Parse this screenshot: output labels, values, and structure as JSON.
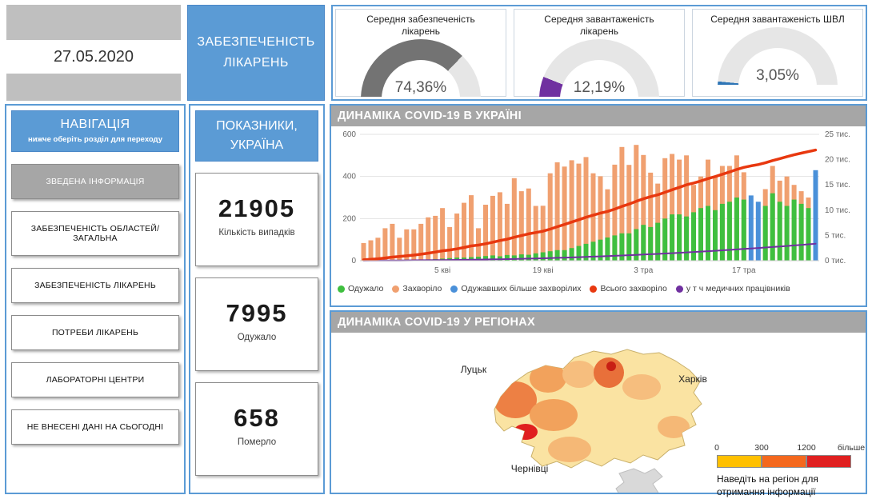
{
  "colors": {
    "accent_blue": "#5B9BD5",
    "header_gray": "#A6A6A6",
    "panel_border": "#8C8C8C"
  },
  "date_card": {
    "date": "27.05.2020"
  },
  "hospital_header": {
    "title": "ЗАБЕЗПЕЧЕНІСТЬ ЛІКАРЕНЬ"
  },
  "gauges": [
    {
      "title": "Середня забезпеченість лікарень",
      "value": "74,36%",
      "percent": 74.36,
      "color": "#737373"
    },
    {
      "title": "Середня завантаженість лікарень",
      "value": "12,19%",
      "percent": 12.19,
      "color": "#7030A0"
    },
    {
      "title": "Середня завантаженість ШВЛ",
      "value": "3,05%",
      "percent": 3.05,
      "color": "#2E75B6"
    }
  ],
  "navigation": {
    "title": "НАВІГАЦІЯ",
    "subtitle": "нижче оберіть розділ для переходу",
    "items": [
      {
        "label": "ЗВЕДЕНА ІНФОРМАЦІЯ",
        "active": true
      },
      {
        "label": "ЗАБЕЗПЕЧЕНІСТЬ ОБЛАСТЕЙ/ ЗАГАЛЬНА",
        "active": false
      },
      {
        "label": "ЗАБЕЗПЕЧЕНІСТЬ ЛІКАРЕНЬ",
        "active": false
      },
      {
        "label": "ПОТРЕБИ ЛІКАРЕНЬ",
        "active": false
      },
      {
        "label": "ЛАБОРАТОРНІ ЦЕНТРИ",
        "active": false
      },
      {
        "label": "НЕ ВНЕСЕНІ ДАНІ НА СЬОГОДНІ",
        "active": false
      }
    ]
  },
  "indicators": {
    "title": "ПОКАЗНИКИ, УКРАЇНА",
    "cards": [
      {
        "value": "21905",
        "label": "Кількість випадків"
      },
      {
        "value": "7995",
        "label": "Одужало"
      },
      {
        "value": "658",
        "label": "Померло"
      }
    ]
  },
  "chart_data": {
    "type": "combo-bar-line",
    "title": "ДИНАМІКА COVID-19 В УКРАЇНІ",
    "left_axis": {
      "ticks": [
        0,
        200,
        400,
        600
      ],
      "max": 600
    },
    "right_axis": {
      "tick_labels": [
        "0 тис.",
        "5 тис.",
        "10 тис.",
        "15 тис.",
        "20 тис.",
        "25 тис."
      ],
      "tick_values": [
        0,
        5000,
        10000,
        15000,
        20000,
        25000
      ],
      "max": 25000
    },
    "x_tick_labels": [
      {
        "index": 11,
        "label": "5 кві"
      },
      {
        "index": 25,
        "label": "19 кві"
      },
      {
        "index": 39,
        "label": "3 тра"
      },
      {
        "index": 53,
        "label": "17 тра"
      }
    ],
    "series": [
      {
        "name": "Одужало",
        "type": "bar",
        "axis": "left",
        "color": "#3FBF3F",
        "values": [
          0,
          1,
          1,
          3,
          2,
          4,
          5,
          4,
          5,
          6,
          8,
          10,
          12,
          15,
          15,
          17,
          19,
          22,
          25,
          21,
          27,
          25,
          30,
          28,
          35,
          40,
          45,
          50,
          50,
          60,
          70,
          80,
          90,
          100,
          110,
          120,
          130,
          130,
          150,
          170,
          160,
          180,
          200,
          220,
          220,
          210,
          230,
          250,
          260,
          240,
          270,
          280,
          300,
          290,
          310,
          280,
          260,
          320,
          280,
          260,
          290,
          270,
          250,
          430
        ]
      },
      {
        "name": "Захворіло",
        "type": "bar",
        "axis": "left",
        "color": "#F0A070",
        "values": [
          84,
          97,
          109,
          154,
          175,
          109,
          149,
          149,
          175,
          206,
          213,
          250,
          160,
          224,
          275,
          311,
          154,
          266,
          308,
          325,
          270,
          392,
          330,
          343,
          260,
          261,
          415,
          467,
          447,
          477,
          461,
          492,
          415,
          401,
          339,
          456,
          540,
          455,
          550,
          502,
          418,
          366,
          487,
          507,
          480,
          500,
          360,
          400,
          480,
          400,
          450,
          450,
          500,
          420,
          300,
          250,
          340,
          450,
          380,
          400,
          360,
          330,
          300,
          324
        ]
      },
      {
        "name": "Одужавших більше захворілих",
        "type": "bar-rule",
        "axis": "left",
        "color": "#4A90D9",
        "rule": "bar shown blue on days when recovered exceeds new cases"
      },
      {
        "name": "Всього захворіло",
        "type": "line",
        "axis": "right",
        "color": "#E8380F",
        "values": [
          171,
          268,
          377,
          531,
          706,
          815,
          964,
          1113,
          1288,
          1494,
          1707,
          1957,
          2117,
          2341,
          2616,
          2927,
          3081,
          3347,
          3655,
          3980,
          4250,
          4642,
          4972,
          5315,
          5575,
          5836,
          6251,
          6718,
          7165,
          7642,
          8103,
          8595,
          9010,
          9411,
          9750,
          10206,
          10746,
          11201,
          11751,
          12253,
          12671,
          13037,
          13524,
          14031,
          14511,
          15011,
          15371,
          15771,
          16251,
          16651,
          17101,
          17551,
          18051,
          18471,
          18771,
          19021,
          19361,
          19811,
          20191,
          20591,
          20951,
          21281,
          21581,
          21905
        ]
      },
      {
        "name": "у т ч медичних працівників",
        "type": "line",
        "axis": "right",
        "color": "#7030A0",
        "values": [
          20,
          25,
          31,
          38,
          46,
          55,
          65,
          76,
          88,
          101,
          115,
          130,
          146,
          163,
          181,
          200,
          220,
          241,
          263,
          286,
          310,
          340,
          372,
          406,
          442,
          480,
          520,
          562,
          606,
          652,
          700,
          750,
          802,
          856,
          912,
          970,
          1030,
          1090,
          1152,
          1216,
          1282,
          1350,
          1420,
          1492,
          1566,
          1642,
          1720,
          1800,
          1882,
          1966,
          2052,
          2140,
          2230,
          2322,
          2416,
          2512,
          2610,
          2710,
          2812,
          2916,
          3022,
          3130,
          3240,
          3352
        ]
      }
    ],
    "legend": [
      {
        "label": "Одужало",
        "color": "#3FBF3F"
      },
      {
        "label": "Захворіло",
        "color": "#F0A070"
      },
      {
        "label": "Одужавших більше захворілих",
        "color": "#4A90D9"
      },
      {
        "label": "Всього захворіло",
        "color": "#E8380F"
      },
      {
        "label": "у т ч медичних працівників",
        "color": "#7030A0"
      }
    ],
    "legend_position": "bottom"
  },
  "map_section": {
    "title": "ДИНАМІКА COVID-19 У РЕГІОНАХ",
    "city_labels": [
      "Луцьк",
      "Харків",
      "Чернівці"
    ],
    "legend": {
      "ticks": [
        "0",
        "300",
        "1200",
        "більше"
      ],
      "colors": [
        "#FFC000",
        "#F4681D",
        "#E02020"
      ]
    },
    "hint": "Наведіть на регіон для отримання інформації"
  }
}
